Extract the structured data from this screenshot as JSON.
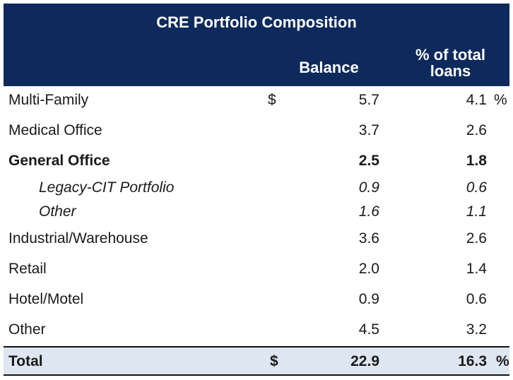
{
  "table": {
    "title": "CRE Portfolio Composition",
    "columns": {
      "balance": "Balance",
      "pct_line1": "% of total",
      "pct_line2": "loans"
    },
    "rows": [
      {
        "label": "Multi-Family",
        "dollar": "$",
        "balance": "5.7",
        "pct": "4.1",
        "pct_sign": "%"
      },
      {
        "label": "Medical Office",
        "balance": "3.7",
        "pct": "2.6"
      },
      {
        "label": "General Office",
        "balance": "2.5",
        "pct": "1.8"
      },
      {
        "label": "Legacy-CIT Portfolio",
        "balance": "0.9",
        "pct": "0.6"
      },
      {
        "label": "Other",
        "balance": "1.6",
        "pct": "1.1"
      },
      {
        "label": "Industrial/Warehouse",
        "balance": "3.6",
        "pct": "2.6"
      },
      {
        "label": "Retail",
        "balance": "2.0",
        "pct": "1.4"
      },
      {
        "label": "Hotel/Motel",
        "balance": "0.9",
        "pct": "0.6"
      },
      {
        "label": "Other",
        "balance": "4.5",
        "pct": "3.2"
      }
    ],
    "total": {
      "label": "Total",
      "dollar": "$",
      "balance": "22.9",
      "pct": "16.3",
      "pct_sign": "%"
    }
  }
}
